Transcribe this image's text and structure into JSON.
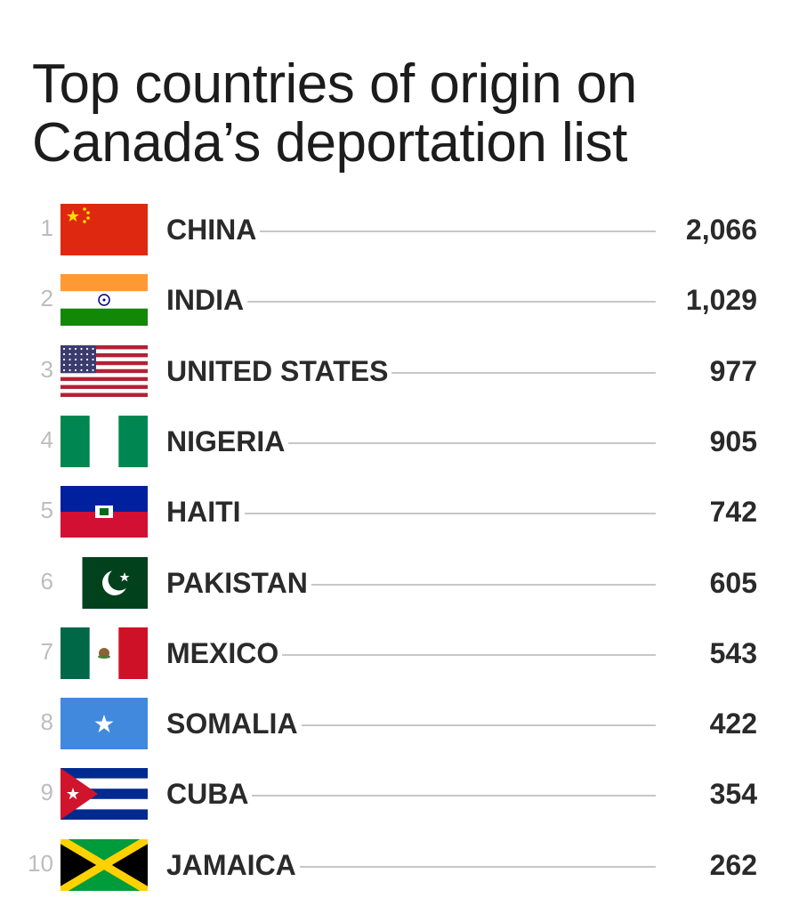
{
  "chart_data": {
    "type": "table",
    "title_lines": [
      "Top countries of origin on",
      "Canada’s deportation list"
    ],
    "rows": [
      {
        "rank": "1",
        "country": "CHINA",
        "value": "2,066",
        "flag": "china-flag"
      },
      {
        "rank": "2",
        "country": "INDIA",
        "value": "1,029",
        "flag": "india-flag"
      },
      {
        "rank": "3",
        "country": "UNITED STATES",
        "value": "977",
        "flag": "united-states-flag"
      },
      {
        "rank": "4",
        "country": "NIGERIA",
        "value": "905",
        "flag": "nigeria-flag"
      },
      {
        "rank": "5",
        "country": "HAITI",
        "value": "742",
        "flag": "haiti-flag"
      },
      {
        "rank": "6",
        "country": "PAKISTAN",
        "value": "605",
        "flag": "pakistan-flag"
      },
      {
        "rank": "7",
        "country": "MEXICO",
        "value": "543",
        "flag": "mexico-flag"
      },
      {
        "rank": "8",
        "country": "SOMALIA",
        "value": "422",
        "flag": "somalia-flag"
      },
      {
        "rank": "9",
        "country": "CUBA",
        "value": "354",
        "flag": "cuba-flag"
      },
      {
        "rank": "10",
        "country": "JAMAICA",
        "value": "262",
        "flag": "jamaica-flag"
      }
    ],
    "values": [
      2066,
      1029,
      977,
      905,
      742,
      605,
      543,
      422,
      354,
      262
    ]
  },
  "colors": {
    "title": "#1c1c1c",
    "text": "#2a2a2a",
    "rank": "#bdbdbd",
    "rule": "#c7c7c7"
  }
}
